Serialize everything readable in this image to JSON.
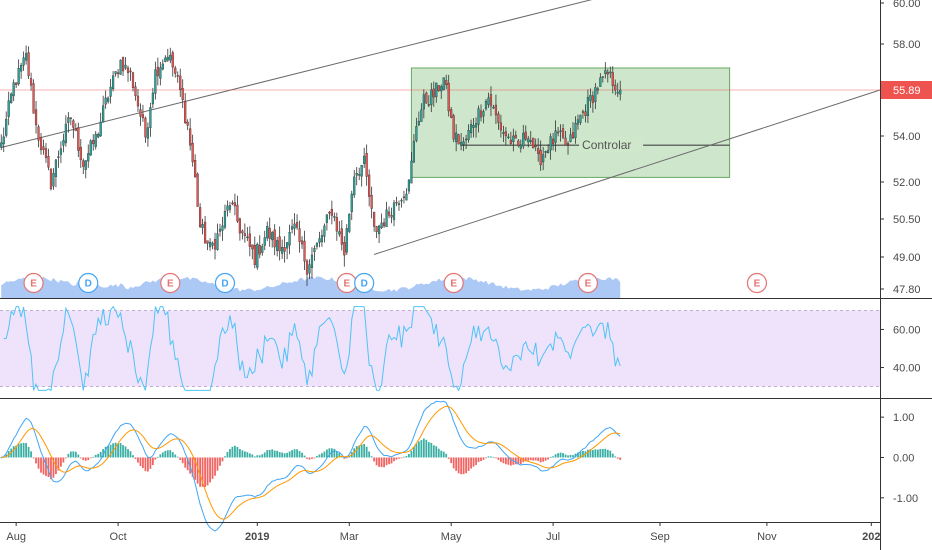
{
  "chart_data": {
    "type": "candlestick",
    "price_axis": {
      "min": 47.3,
      "max": 60.0,
      "tick_labels": [
        "60.00",
        "58.00",
        "55.89",
        "54.00",
        "52.00",
        "50.50",
        "49.00",
        "47.80"
      ],
      "tick_values": [
        60.0,
        58.0,
        55.89,
        54.0,
        52.0,
        50.5,
        49.0,
        47.8
      ]
    },
    "current_price": {
      "value": 55.89,
      "label": "55.89",
      "color": "#ef5350"
    },
    "time_axis": {
      "labels": [
        {
          "text": "Aug",
          "index": 6,
          "bold": false
        },
        {
          "text": "Oct",
          "index": 47,
          "bold": false
        },
        {
          "text": "2019",
          "index": 103,
          "bold": true
        },
        {
          "text": "Mar",
          "index": 140,
          "bold": false
        },
        {
          "text": "May",
          "index": 181,
          "bold": false
        },
        {
          "text": "Jul",
          "index": 222,
          "bold": false
        },
        {
          "text": "Sep",
          "index": 265,
          "bold": false
        },
        {
          "text": "Nov",
          "index": 308,
          "bold": false
        },
        {
          "text": "202",
          "index": 350,
          "bold": true
        }
      ],
      "total_bars": 354,
      "data_bars": 250
    },
    "price_path": [
      [
        0,
        53.6
      ],
      [
        5,
        56.1
      ],
      [
        10,
        57.4
      ],
      [
        14,
        54.4
      ],
      [
        20,
        52.0
      ],
      [
        24,
        53.6
      ],
      [
        28,
        54.8
      ],
      [
        33,
        52.8
      ],
      [
        38,
        53.9
      ],
      [
        43,
        55.7
      ],
      [
        48,
        57.2
      ],
      [
        52,
        56.6
      ],
      [
        58,
        54.0
      ],
      [
        62,
        56.7
      ],
      [
        67,
        57.6
      ],
      [
        71,
        56.3
      ],
      [
        75,
        54.4
      ],
      [
        78,
        52.1
      ],
      [
        80,
        50.2
      ],
      [
        84,
        49.3
      ],
      [
        88,
        50.0
      ],
      [
        92,
        51.2
      ],
      [
        97,
        49.9
      ],
      [
        102,
        49.0
      ],
      [
        107,
        50.0
      ],
      [
        112,
        49.3
      ],
      [
        118,
        50.1
      ],
      [
        123,
        48.7
      ],
      [
        128,
        49.6
      ],
      [
        133,
        50.9
      ],
      [
        138,
        49.2
      ],
      [
        142,
        52.4
      ],
      [
        146,
        52.8
      ],
      [
        150,
        50.0
      ],
      [
        155,
        50.6
      ],
      [
        160,
        51.4
      ],
      [
        164,
        51.9
      ],
      [
        167,
        54.5
      ],
      [
        170,
        55.4
      ],
      [
        174,
        55.7
      ],
      [
        178,
        56.4
      ],
      [
        182,
        54.0
      ],
      [
        186,
        53.6
      ],
      [
        190,
        54.6
      ],
      [
        196,
        55.6
      ],
      [
        200,
        54.5
      ],
      [
        204,
        53.9
      ],
      [
        208,
        53.5
      ],
      [
        212,
        54.2
      ],
      [
        216,
        52.9
      ],
      [
        220,
        53.6
      ],
      [
        224,
        54.0
      ],
      [
        228,
        53.5
      ],
      [
        232,
        54.6
      ],
      [
        236,
        55.3
      ],
      [
        240,
        56.1
      ],
      [
        244,
        56.6
      ],
      [
        248,
        56.0
      ],
      [
        249,
        55.89
      ]
    ],
    "channel": {
      "upper": {
        "from": [
          0,
          53.5
        ],
        "to": [
          265,
          61.0
        ]
      },
      "lower": {
        "from": [
          150,
          49.1
        ],
        "to": [
          352,
          55.89
        ]
      },
      "color": "#6b6b6b"
    },
    "range_box": {
      "index_from": 165,
      "index_to": 293,
      "price_top": 56.9,
      "price_bottom": 52.2,
      "color": "#9ecf9a",
      "midline": {
        "index_from": 185,
        "index_to": 293,
        "price": 53.6
      },
      "label": "Controlar"
    },
    "events": [
      {
        "type": "E",
        "index": 13,
        "color": "#e57373"
      },
      {
        "type": "D",
        "index": 35,
        "color": "#42a5f5"
      },
      {
        "type": "E",
        "index": 68,
        "color": "#e57373"
      },
      {
        "type": "D",
        "index": 90,
        "color": "#42a5f5"
      },
      {
        "type": "E",
        "index": 139,
        "color": "#e57373"
      },
      {
        "type": "D",
        "index": 146,
        "color": "#42a5f5"
      },
      {
        "type": "E",
        "index": 182,
        "color": "#e57373"
      },
      {
        "type": "E",
        "index": 236,
        "color": "#e57373"
      },
      {
        "type": "E",
        "index": 304,
        "color": "#e57373"
      }
    ],
    "rsi": {
      "tick_labels": [
        "60.00",
        "40.00"
      ],
      "tick_values": [
        60,
        40
      ],
      "band_upper": 70,
      "band_lower": 30,
      "min": 24,
      "max": 76,
      "line_color": "#4fc3f7",
      "band_color": "#efe3fb"
    },
    "macd": {
      "tick_labels": [
        "1.00",
        "0.00",
        "-1.00"
      ],
      "tick_values": [
        1,
        0,
        -1
      ],
      "min": -1.6,
      "max": 1.45,
      "macd_color": "#42a5f5",
      "signal_color": "#ff9800",
      "hist_up_color": "#26a69a",
      "hist_down_color": "#ef5350"
    },
    "colors": {
      "up": "#26a69a",
      "down": "#ef5350",
      "wick": "#333333",
      "volume": "#9ec0f4"
    }
  }
}
